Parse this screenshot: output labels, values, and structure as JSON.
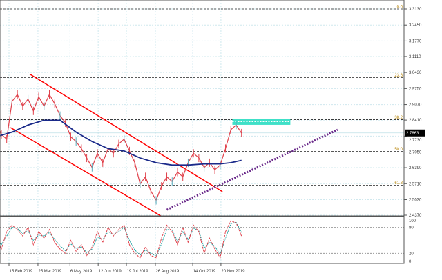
{
  "chart_data": {
    "type": "line",
    "price_axis": {
      "ticks": [
        "3.3130",
        "3.2450",
        "3.1770",
        "3.1110",
        "3.0430",
        "2.9750",
        "2.9070",
        "2.8410",
        "2.7730",
        "2.7050",
        "2.6390",
        "2.5710",
        "2.5030",
        "2.4370"
      ],
      "ylim": [
        2.437,
        3.313
      ],
      "current_price": "2.7863"
    },
    "date_ticks": [
      {
        "label": "15 Feb 2019",
        "date": "2019-02-15"
      },
      {
        "label": "25 Mar 2019",
        "date": "2019-03-25"
      },
      {
        "label": "6 May 2019",
        "date": "2019-05-06"
      },
      {
        "label": "12 Jun 2019",
        "date": "2019-06-12"
      },
      {
        "label": "19 Jul 2019",
        "date": "2019-07-19"
      },
      {
        "label": "26 Aug 2019",
        "date": "2019-08-26"
      },
      {
        "label": "14 Oct 2019",
        "date": "2019-10-14"
      },
      {
        "label": "20 Nov 2019",
        "date": "2019-11-20"
      }
    ],
    "price_series": {
      "color": "#e0404a",
      "x": [
        "2019-01-29",
        "2019-02-05",
        "2019-02-12",
        "2019-02-19",
        "2019-02-26",
        "2019-03-05",
        "2019-03-12",
        "2019-03-19",
        "2019-03-26",
        "2019-04-02",
        "2019-04-09",
        "2019-04-16",
        "2019-04-23",
        "2019-04-30",
        "2019-05-07",
        "2019-05-14",
        "2019-05-21",
        "2019-05-28",
        "2019-06-04",
        "2019-06-11",
        "2019-06-18",
        "2019-06-25",
        "2019-07-02",
        "2019-07-09",
        "2019-07-16",
        "2019-07-23",
        "2019-07-30",
        "2019-08-06",
        "2019-08-13",
        "2019-08-20",
        "2019-08-27",
        "2019-09-03",
        "2019-09-10",
        "2019-09-17",
        "2019-09-24",
        "2019-10-01",
        "2019-10-08",
        "2019-10-15",
        "2019-10-22",
        "2019-10-29",
        "2019-11-05",
        "2019-11-12",
        "2019-11-19",
        "2019-11-26",
        "2019-12-03",
        "2019-12-10",
        "2019-12-17"
      ],
      "y": [
        2.84,
        2.78,
        2.76,
        2.92,
        2.95,
        2.9,
        2.93,
        2.88,
        2.94,
        2.9,
        2.95,
        2.91,
        2.86,
        2.83,
        2.77,
        2.75,
        2.72,
        2.68,
        2.64,
        2.7,
        2.66,
        2.72,
        2.7,
        2.74,
        2.76,
        2.71,
        2.66,
        2.57,
        2.6,
        2.54,
        2.5,
        2.56,
        2.6,
        2.58,
        2.62,
        2.6,
        2.66,
        2.7,
        2.68,
        2.64,
        2.66,
        2.63,
        2.65,
        2.72,
        2.8,
        2.82,
        2.786
      ]
    },
    "moving_average": {
      "color": "#1a2a8a",
      "x": [
        "2019-01-29",
        "2019-02-19",
        "2019-03-12",
        "2019-04-02",
        "2019-04-23",
        "2019-05-14",
        "2019-06-04",
        "2019-06-25",
        "2019-07-16",
        "2019-08-06",
        "2019-08-27",
        "2019-09-17",
        "2019-10-08",
        "2019-10-29",
        "2019-11-19",
        "2019-12-03",
        "2019-12-17"
      ],
      "y": [
        2.77,
        2.79,
        2.82,
        2.84,
        2.84,
        2.79,
        2.75,
        2.72,
        2.71,
        2.68,
        2.66,
        2.65,
        2.65,
        2.655,
        2.655,
        2.66,
        2.67
      ]
    },
    "fibonacci": [
      {
        "label": "0.0",
        "price": 3.313
      },
      {
        "label": "23.6",
        "price": 3.022
      },
      {
        "label": "38.2",
        "price": 2.843
      },
      {
        "label": "50.0",
        "price": 2.708
      },
      {
        "label": "61.8",
        "price": 2.564
      }
    ],
    "annotations": {
      "channel_color": "#ff0000",
      "channel_lines": [
        {
          "from": {
            "date": "2019-03-14",
            "price": 3.037
          },
          "to": {
            "date": "2019-11-22",
            "price": 2.537
          }
        },
        {
          "from": {
            "date": "2019-02-17",
            "price": 2.809
          },
          "to": {
            "date": "2019-09-02",
            "price": 2.434
          }
        }
      ],
      "trend_line": {
        "color": "#6a2a8a",
        "from": {
          "date": "2019-09-10",
          "price": 2.46
        },
        "to": {
          "date": "2020-04-21",
          "price": 2.8
        }
      },
      "zone": {
        "color": "#40e0c8",
        "from_date": "2019-12-05",
        "to_date": "2020-02-19",
        "top": 2.847,
        "bottom": 2.821
      }
    },
    "oscillator": {
      "ticks": [
        "100",
        "80",
        "20",
        "0"
      ],
      "ylim": [
        0,
        100
      ],
      "main": {
        "color": "#e0404a",
        "y": [
          60,
          30,
          70,
          85,
          75,
          60,
          80,
          40,
          70,
          55,
          75,
          45,
          30,
          20,
          50,
          25,
          40,
          15,
          35,
          70,
          45,
          80,
          60,
          75,
          85,
          40,
          20,
          10,
          35,
          15,
          10,
          55,
          85,
          70,
          40,
          80,
          45,
          85,
          70,
          20,
          55,
          30,
          10,
          70,
          95,
          90,
          60
        ]
      },
      "signal": {
        "color": "#20a0a0",
        "y": [
          55,
          40,
          60,
          80,
          78,
          65,
          72,
          50,
          62,
          60,
          68,
          52,
          38,
          26,
          42,
          32,
          35,
          22,
          30,
          58,
          52,
          70,
          64,
          70,
          80,
          50,
          28,
          16,
          28,
          20,
          14,
          42,
          75,
          74,
          48,
          70,
          52,
          78,
          72,
          32,
          46,
          36,
          18,
          55,
          88,
          92,
          68
        ]
      }
    }
  }
}
